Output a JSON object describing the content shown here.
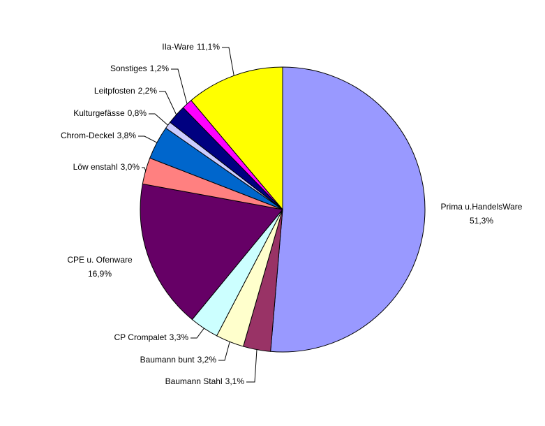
{
  "chart_data": {
    "type": "pie",
    "categories": [
      "Prima u.HandelsWare",
      "Baumann Stahl",
      "Baumann bunt",
      "CP Crompalet",
      "CPE u. Ofenware",
      "Löw enstahl",
      "Chrom-Deckel",
      "Kulturgefässe",
      "Leitpfosten",
      "Sonstiges",
      "IIa-Ware"
    ],
    "values": [
      51.3,
      3.1,
      3.2,
      3.3,
      16.9,
      3.0,
      3.8,
      0.8,
      2.2,
      1.2,
      11.1
    ],
    "value_labels": [
      "51,3%",
      "3,1%",
      "3,2%",
      "3,3%",
      "16,9%",
      "3,0%",
      "3,8%",
      "0,8%",
      "2,2%",
      "1,2%",
      "11,1%"
    ],
    "colors": [
      "#9999ff",
      "#993366",
      "#ffffcc",
      "#ccffff",
      "#660066",
      "#ff8080",
      "#0066cc",
      "#ccccff",
      "#000080",
      "#ff00ff",
      "#ffff00"
    ]
  }
}
